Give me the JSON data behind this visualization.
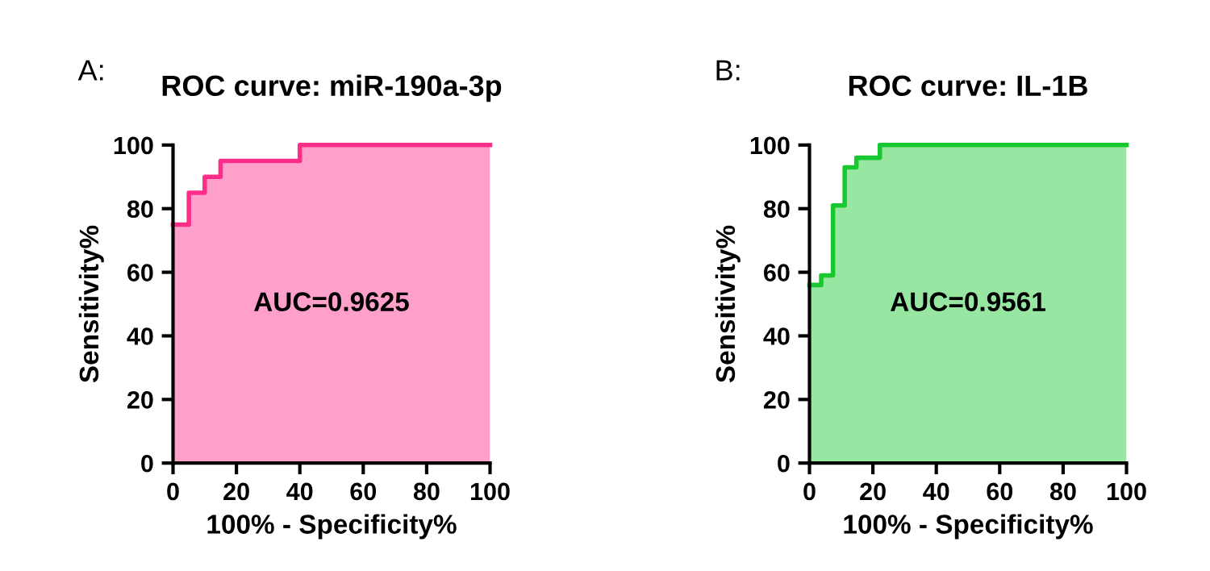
{
  "chart_data": [
    {
      "type": "step",
      "title": "ROC curve: miR-190a-3p",
      "xlabel": "100% - Specificity%",
      "ylabel": "Sensitivity%",
      "annotations": [
        "A:",
        "AUC=0.9625"
      ],
      "series": [
        {
          "color": "#ff2d8a",
          "x": [
            0,
            5,
            10,
            15,
            40,
            100
          ],
          "values": [
            75,
            85,
            90,
            95,
            100,
            100
          ]
        }
      ],
      "xlim": [
        0,
        100
      ],
      "ylim": [
        0,
        100
      ],
      "xticks": [
        0,
        20,
        40,
        60,
        80,
        100
      ],
      "yticks": [
        0,
        20,
        40,
        60,
        80,
        100
      ],
      "grid": false,
      "legend": false
    },
    {
      "type": "step",
      "title": "ROC curve: IL-1B",
      "xlabel": "100% - Specificity%",
      "ylabel": "Sensitivity%",
      "annotations": [
        "B:",
        "AUC=0.9561"
      ],
      "series": [
        {
          "color": "#19c830",
          "x": [
            0,
            3.7,
            7.4,
            11.1,
            14.8,
            22.2,
            100
          ],
          "values": [
            56,
            59,
            81,
            93,
            96,
            100,
            100
          ]
        }
      ],
      "xlim": [
        0,
        100
      ],
      "ylim": [
        0,
        100
      ],
      "xticks": [
        0,
        20,
        40,
        60,
        80,
        100
      ],
      "yticks": [
        0,
        20,
        40,
        60,
        80,
        100
      ],
      "grid": false,
      "legend": false
    }
  ]
}
